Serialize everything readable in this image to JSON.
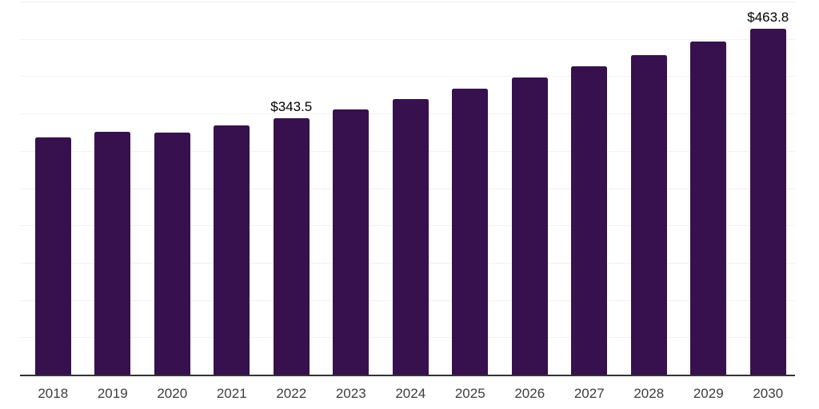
{
  "chart_data": {
    "type": "bar",
    "title": "",
    "xlabel": "",
    "ylabel": "",
    "categories": [
      "2018",
      "2019",
      "2020",
      "2021",
      "2022",
      "2023",
      "2024",
      "2025",
      "2026",
      "2027",
      "2028",
      "2029",
      "2030"
    ],
    "values": [
      317.5,
      325,
      324,
      334.5,
      343.5,
      355.5,
      369,
      383,
      398,
      413.5,
      428.5,
      446.5,
      463.8
    ],
    "bar_labels": [
      "",
      "",
      "",
      "",
      "$343.5",
      "",
      "",
      "",
      "",
      "",
      "",
      "",
      "$463.8"
    ],
    "ylim": [
      0,
      500
    ],
    "gridline_interval": 50,
    "grid": true,
    "legend": false,
    "colors": {
      "bar_fill": "#36114e",
      "gridline": "#f2f2f2",
      "axis_line": "#333333",
      "tick_label": "#3d3d3d",
      "data_label": "#000000",
      "background": "#ffffff"
    }
  }
}
